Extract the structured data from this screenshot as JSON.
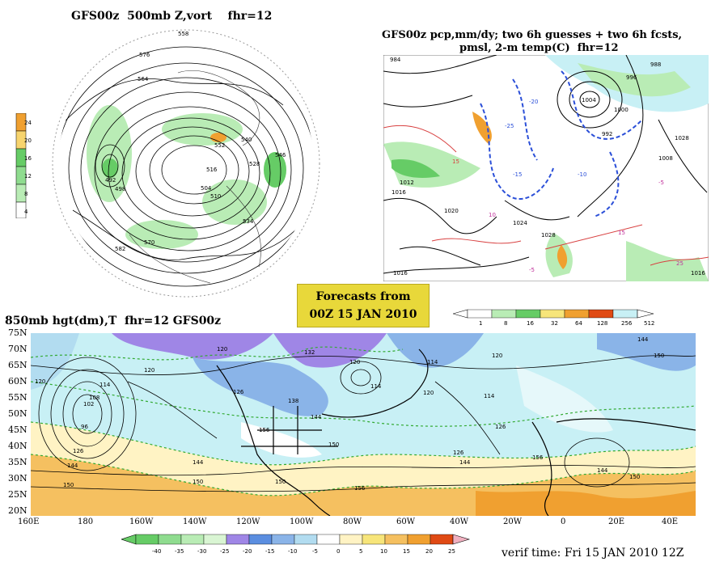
{
  "panels": {
    "top_left_title": "GFS00z  500mb Z,vort    fhr=12",
    "top_right_title_line1": "GFS00z pcp,mm/dy; two 6h guesses + two 6h fcsts,",
    "top_right_title_line2": "pmsl, 2-m temp(C)  fhr=12",
    "bottom_title": "850mb hgt(dm),T  fhr=12 GFS00z"
  },
  "forecast_badge": {
    "line1": "Forecasts from",
    "line2": "00Z 15 JAN 2010"
  },
  "vort_legend": [
    "24",
    "20",
    "16",
    "12",
    "8",
    "4"
  ],
  "pcp_legend": [
    "1",
    "8",
    "16",
    "32",
    "64",
    "128",
    "256",
    "512"
  ],
  "temp_legend": [
    "-40",
    "-35",
    "-30",
    "-25",
    "-20",
    "-15",
    "-10",
    "-5",
    "0",
    "5",
    "10",
    "15",
    "20",
    "25"
  ],
  "latitudes": [
    "75N",
    "70N",
    "65N",
    "60N",
    "55N",
    "50N",
    "45N",
    "40N",
    "35N",
    "30N",
    "25N",
    "20N"
  ],
  "longitudes": [
    "160E",
    "180",
    "160W",
    "140W",
    "120W",
    "100W",
    "80W",
    "60W",
    "40W",
    "20W",
    "0",
    "20E",
    "40E"
  ],
  "verif_time": "verif time: Fri 15 JAN 2010 12Z",
  "polar_contour_labels": [
    "558",
    "576",
    "564",
    "552",
    "540",
    "528",
    "516",
    "504",
    "492",
    "570",
    "582",
    "546",
    "534",
    "510",
    "498"
  ],
  "na_pressure_labels": [
    "1012",
    "1016",
    "1020",
    "1024",
    "1028",
    "1004",
    "1000",
    "996",
    "992",
    "1008",
    "988",
    "984"
  ],
  "na_temp_labels": [
    "-15",
    "-10",
    "-5",
    "5",
    "10",
    "15",
    "-25",
    "-20",
    "25"
  ],
  "hgt850_labels": [
    "120",
    "132",
    "114",
    "108",
    "102",
    "96",
    "126",
    "138",
    "144",
    "150",
    "156"
  ],
  "colors": {
    "vort_light": "#b9ecb5",
    "vort_mid": "#66cc66",
    "vort_high": "#f0a030",
    "warm": "#f5c060",
    "cold_blue": "#8ab4e8",
    "purple": "#9f86e6",
    "cyan": "#c8f0f5",
    "badge": "#e8d83a"
  }
}
